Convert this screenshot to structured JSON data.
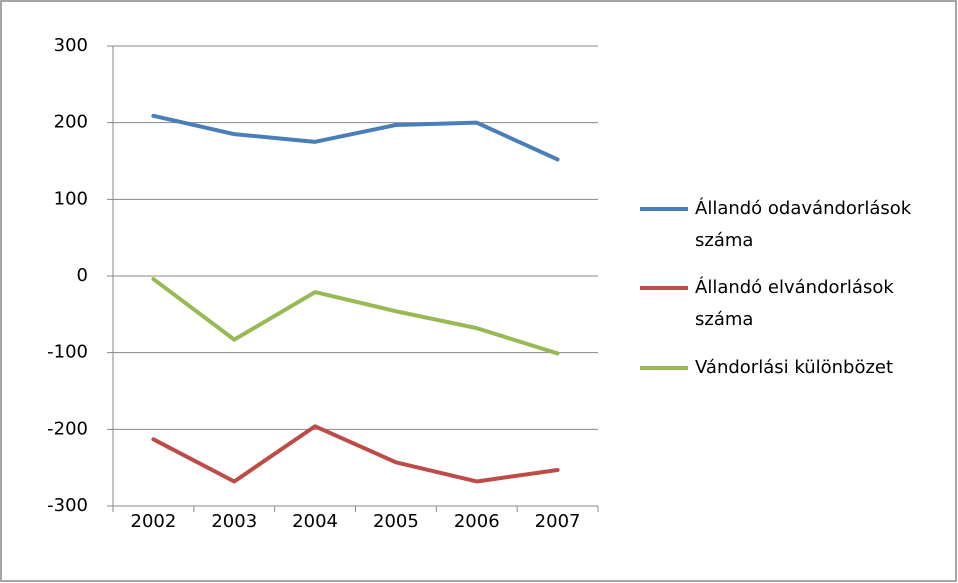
{
  "chart_data": {
    "type": "line",
    "categories": [
      "2002",
      "2003",
      "2004",
      "2005",
      "2006",
      "2007"
    ],
    "series": [
      {
        "name": "Állandó odavándorlások száma",
        "color": "#4a7ebb",
        "values": [
          209,
          185,
          175,
          197,
          200,
          152
        ]
      },
      {
        "name": "Állandó elvándorlások száma",
        "color": "#be4b48",
        "values": [
          -213,
          -268,
          -196,
          -243,
          -268,
          -253
        ]
      },
      {
        "name": "Vándorlási különbözet",
        "color": "#98b954",
        "values": [
          -4,
          -83,
          -21,
          -46,
          -68,
          -101
        ]
      }
    ],
    "ylim": [
      -300,
      300
    ],
    "yticks": [
      -300,
      -200,
      -100,
      0,
      100,
      200,
      300
    ],
    "grid": true,
    "legend": "right"
  }
}
